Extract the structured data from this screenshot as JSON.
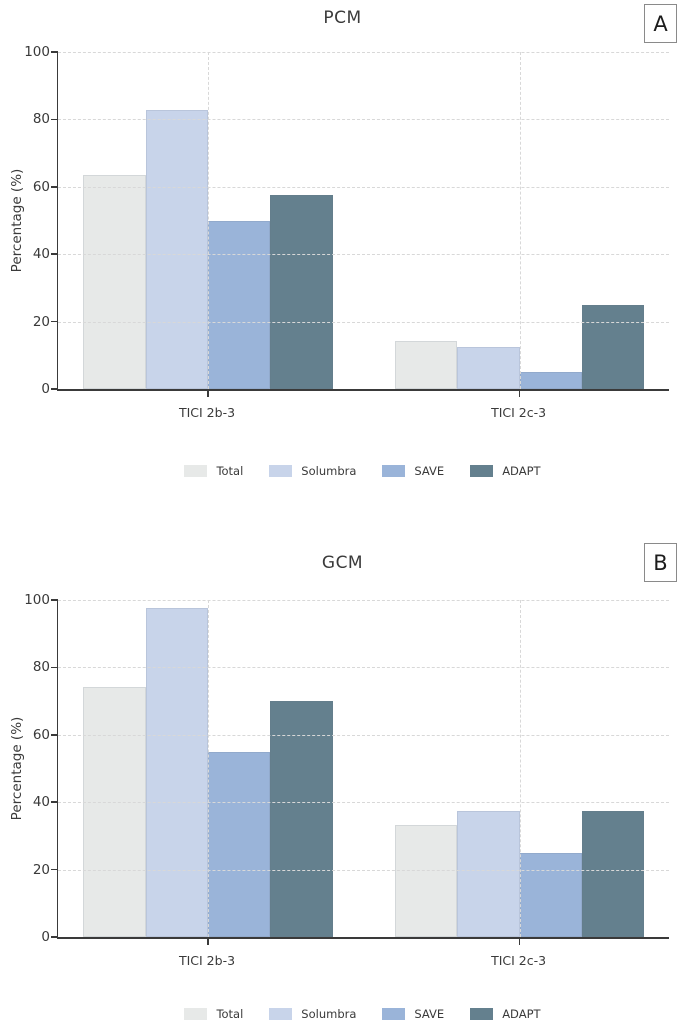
{
  "style": {
    "background": "#ffffff",
    "grid_color": "#d8d8d8",
    "axis_color": "#3a3a3a",
    "text_color": "#3a3a3a",
    "panel_box_border": "#8a8a8a"
  },
  "chart_data": [
    {
      "type": "bar",
      "panel_label": "A",
      "title": "PCM",
      "ylabel": "Percentage (%)",
      "xlabel": "",
      "ylim": [
        0,
        100
      ],
      "yticks": [
        0,
        20,
        40,
        60,
        80,
        100
      ],
      "grid": true,
      "legend_position": "bottom",
      "categories": [
        "TICI 2b-3",
        "TICI 2c-3"
      ],
      "series": [
        {
          "name": "Total",
          "color": "#e7e9e8",
          "values": [
            63.6,
            14.3
          ]
        },
        {
          "name": "Solumbra",
          "color": "#c8d4ea",
          "values": [
            82.9,
            12.5
          ]
        },
        {
          "name": "SAVE",
          "color": "#9ab4d9",
          "values": [
            50.0,
            5.0
          ]
        },
        {
          "name": "ADAPT",
          "color": "#64808e",
          "values": [
            57.5,
            25.0
          ]
        }
      ]
    },
    {
      "type": "bar",
      "panel_label": "B",
      "title": "GCM",
      "ylabel": "Percentage (%)",
      "xlabel": "",
      "ylim": [
        0,
        100
      ],
      "yticks": [
        0,
        20,
        40,
        60,
        80,
        100
      ],
      "grid": true,
      "legend_position": "bottom",
      "categories": [
        "TICI 2b-3",
        "TICI 2c-3"
      ],
      "series": [
        {
          "name": "Total",
          "color": "#e7e9e8",
          "values": [
            74.3,
            33.3
          ]
        },
        {
          "name": "Solumbra",
          "color": "#c8d4ea",
          "values": [
            97.5,
            37.5
          ]
        },
        {
          "name": "SAVE",
          "color": "#9ab4d9",
          "values": [
            55.0,
            25.0
          ]
        },
        {
          "name": "ADAPT",
          "color": "#64808e",
          "values": [
            70.0,
            37.5
          ]
        }
      ]
    }
  ]
}
